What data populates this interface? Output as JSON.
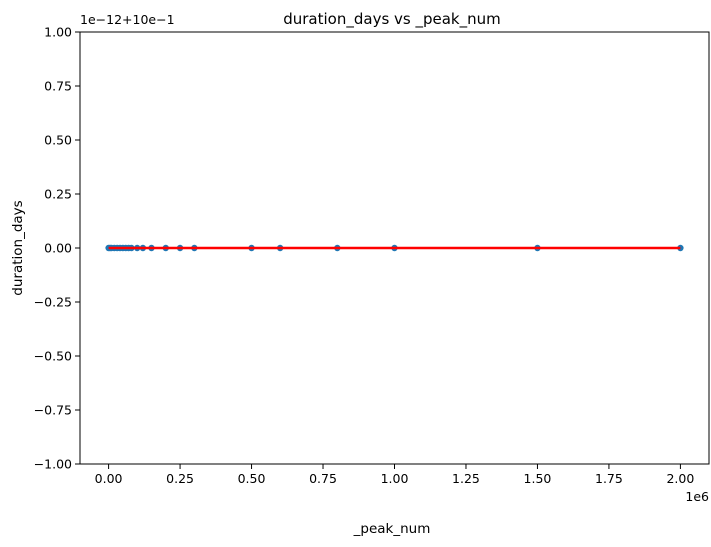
{
  "chart_data": {
    "type": "scatter",
    "title": "duration_days vs _peak_num",
    "xlabel": "_peak_num",
    "ylabel": "duration_days",
    "x_offset_text": "1e6",
    "y_offset_text": "1e−12+10e−1",
    "xlim": [
      -0.1,
      2.1
    ],
    "ylim": [
      -1.0,
      1.0
    ],
    "x_ticks": [
      0.0,
      0.25,
      0.5,
      0.75,
      1.0,
      1.25,
      1.5,
      1.75,
      2.0
    ],
    "x_tick_labels": [
      "0.00",
      "0.25",
      "0.50",
      "0.75",
      "1.00",
      "1.25",
      "1.50",
      "1.75",
      "2.00"
    ],
    "y_ticks": [
      -1.0,
      -0.75,
      -0.5,
      -0.25,
      0.0,
      0.25,
      0.5,
      0.75,
      1.0
    ],
    "y_tick_labels": [
      "−1.00",
      "−0.75",
      "−0.50",
      "−0.25",
      "0.00",
      "0.25",
      "0.50",
      "0.75",
      "1.00"
    ],
    "grid": false,
    "series": [
      {
        "kind": "scatter",
        "color": "#1f77b4",
        "x": [
          0.0,
          0.005,
          0.01,
          0.02,
          0.03,
          0.04,
          0.05,
          0.06,
          0.07,
          0.08,
          0.1,
          0.12,
          0.15,
          0.2,
          0.25,
          0.3,
          0.5,
          0.6,
          0.8,
          1.0,
          1.5,
          2.0
        ],
        "y": [
          0,
          0,
          0,
          0,
          0,
          0,
          0,
          0,
          0,
          0,
          0,
          0,
          0,
          0,
          0,
          0,
          0,
          0,
          0,
          0,
          0,
          0
        ]
      },
      {
        "kind": "line",
        "color": "#ff0000",
        "x": [
          0.0,
          2.0
        ],
        "y": [
          0,
          0
        ]
      }
    ]
  }
}
